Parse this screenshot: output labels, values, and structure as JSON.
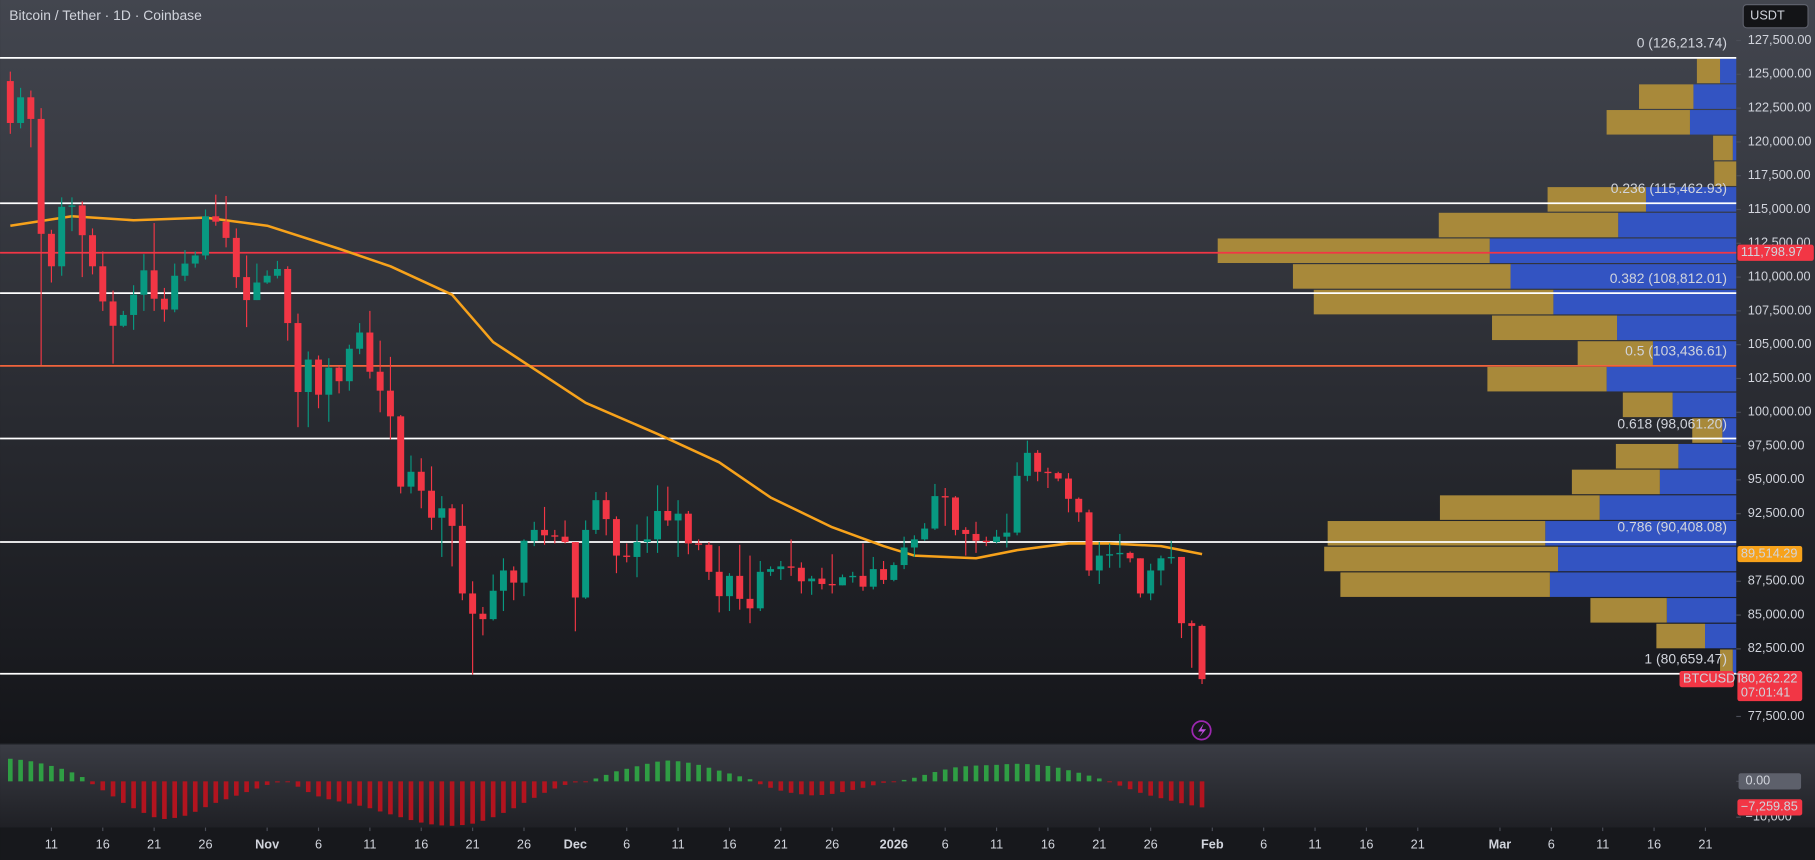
{
  "chart_data": {
    "type": "candlestick",
    "title": "Bitcoin / Tether · 1D · Coinbase",
    "currency": "USDT",
    "up_color": "#089981",
    "down_color": "#f23645",
    "x": [
      -4,
      -3,
      -2,
      -1,
      0,
      1,
      2,
      3,
      4,
      5,
      6,
      7,
      8,
      9,
      10,
      11,
      12,
      13,
      14,
      15,
      16,
      17,
      18,
      19,
      20,
      21,
      22,
      23,
      24,
      25,
      26,
      27,
      28,
      29,
      30,
      31,
      32,
      33,
      34,
      35,
      36,
      37,
      38,
      39,
      40,
      41,
      42,
      43,
      44,
      45,
      46,
      47,
      48,
      49,
      50,
      51,
      52,
      53,
      54,
      55,
      56,
      57,
      58,
      59,
      60,
      61,
      62,
      63,
      64,
      65,
      66,
      67,
      68,
      69,
      70,
      71,
      72,
      73,
      74,
      75,
      76,
      77,
      78,
      79,
      80,
      81,
      82,
      83,
      84,
      85,
      86,
      87,
      88,
      89,
      90,
      91,
      92,
      93,
      94,
      95,
      96,
      97,
      98,
      99,
      100,
      101,
      102,
      103,
      104,
      105,
      106,
      107,
      108,
      109,
      110,
      111,
      112
    ],
    "open": [
      124500,
      121400,
      123300,
      121700,
      113200,
      110800,
      115200,
      115300,
      113100,
      110800,
      108200,
      106400,
      107200,
      108700,
      110500,
      108400,
      107600,
      110100,
      111000,
      111600,
      114500,
      114100,
      112900,
      110000,
      108300,
      109600,
      110100,
      110600,
      106600,
      101500,
      103900,
      101300,
      103300,
      102300,
      104700,
      105900,
      103000,
      101600,
      99700,
      94500,
      95600,
      94200,
      92200,
      92900,
      91600,
      86600,
      85100,
      84700,
      86800,
      88300,
      87400,
      90500,
      91300,
      90900,
      90800,
      90400,
      86300,
      91300,
      93500,
      92100,
      89400,
      89300,
      90400,
      90600,
      92700,
      92000,
      92500,
      90300,
      90200,
      88200,
      86400,
      87900,
      86200,
      85500,
      88200,
      88400,
      88600,
      88500,
      87500,
      87700,
      87300,
      87200,
      87800,
      87900,
      87100,
      88400,
      87600,
      88700,
      90000,
      90600,
      91400,
      93800,
      93700,
      91300,
      91000,
      90500,
      90400,
      90800,
      91100,
      95300,
      97000,
      95600,
      95500,
      95100,
      93600,
      92600,
      88300,
      89400,
      89500,
      89600,
      89200,
      86600,
      88300,
      89200,
      89300,
      84400,
      84200
    ],
    "high": [
      125200,
      124000,
      123800,
      122500,
      113500,
      115900,
      115900,
      115600,
      113600,
      111900,
      109000,
      107500,
      109400,
      111700,
      114000,
      109200,
      111000,
      112000,
      111900,
      115000,
      116100,
      116000,
      113600,
      111600,
      111000,
      110500,
      111200,
      110800,
      107300,
      104500,
      104200,
      104000,
      103400,
      105000,
      106600,
      107500,
      105300,
      104100,
      99800,
      96800,
      96600,
      96000,
      93800,
      93200,
      93200,
      87500,
      85600,
      88000,
      89200,
      88600,
      90600,
      91900,
      93000,
      91300,
      92000,
      90400,
      92000,
      94100,
      94100,
      92300,
      90300,
      91700,
      92300,
      94600,
      94500,
      93500,
      92700,
      90600,
      90400,
      90100,
      88100,
      90200,
      89400,
      89000,
      88600,
      89000,
      90600,
      88900,
      87900,
      88500,
      89500,
      88000,
      88200,
      90300,
      89300,
      89000,
      88900,
      90800,
      90900,
      91800,
      94700,
      94400,
      93800,
      91500,
      91900,
      90800,
      91300,
      92500,
      96300,
      97900,
      97200,
      95900,
      95600,
      95500,
      93700,
      92800,
      90400,
      90300,
      91000,
      89700,
      89200,
      88800,
      89400,
      90500,
      89300,
      84600,
      84300
    ],
    "low": [
      120600,
      121000,
      119600,
      103500,
      109600,
      110100,
      113400,
      110000,
      110200,
      107500,
      103600,
      106300,
      106100,
      107500,
      107500,
      106700,
      107400,
      109700,
      110700,
      111300,
      113800,
      112200,
      109200,
      106300,
      108300,
      109500,
      109900,
      105300,
      98900,
      98900,
      100300,
      99300,
      101400,
      101600,
      104300,
      102500,
      100000,
      98000,
      94000,
      94000,
      92900,
      91300,
      89300,
      88600,
      86100,
      80600,
      83500,
      84600,
      85300,
      86100,
      86400,
      90100,
      90200,
      90300,
      90300,
      83800,
      86200,
      91000,
      90900,
      88100,
      88900,
      87800,
      89600,
      89600,
      91600,
      89300,
      89500,
      89800,
      87600,
      85200,
      85300,
      85400,
      84400,
      85300,
      87900,
      87600,
      87900,
      86600,
      86500,
      86900,
      86600,
      87200,
      87400,
      86800,
      86900,
      87300,
      87500,
      88400,
      89300,
      90500,
      91300,
      91600,
      90900,
      89400,
      89600,
      90100,
      90300,
      90000,
      90900,
      94900,
      94900,
      94400,
      94900,
      92600,
      91900,
      87900,
      87300,
      88500,
      88500,
      88900,
      86300,
      86100,
      87200,
      88800,
      83300,
      81100,
      79900
    ],
    "close": [
      121400,
      123300,
      121700,
      113200,
      110800,
      115200,
      115300,
      113100,
      110800,
      108200,
      106400,
      107200,
      108700,
      110500,
      108400,
      107600,
      110100,
      111000,
      111600,
      114500,
      114100,
      112900,
      110000,
      108300,
      109600,
      110100,
      110600,
      106600,
      101500,
      103900,
      101300,
      103300,
      102300,
      104700,
      105900,
      103000,
      101600,
      99700,
      94500,
      95600,
      94200,
      92200,
      92900,
      91600,
      86600,
      85100,
      84700,
      86800,
      88300,
      87400,
      90500,
      91300,
      90900,
      90800,
      90400,
      86300,
      91300,
      93500,
      92100,
      89400,
      89300,
      90400,
      90600,
      92700,
      92000,
      92500,
      90300,
      90200,
      88200,
      86400,
      87900,
      86200,
      85500,
      88200,
      88400,
      88600,
      88500,
      87500,
      87700,
      87300,
      87200,
      87800,
      87900,
      87100,
      88400,
      87600,
      88700,
      90000,
      90600,
      91400,
      93800,
      93700,
      91300,
      91000,
      90500,
      90400,
      90800,
      91100,
      95300,
      97000,
      95600,
      95500,
      95100,
      93600,
      92600,
      88300,
      89400,
      89500,
      89600,
      89200,
      86600,
      88300,
      89200,
      89300,
      84400,
      84200,
      80262.22
    ],
    "last_label": "80,262.22",
    "symbol": "BTCUSDT",
    "countdown": "07:01:41",
    "xlim": [
      -5,
      164
    ],
    "xticks": [
      {
        "value": 0,
        "label": "11"
      },
      {
        "value": 5,
        "label": "16"
      },
      {
        "value": 10,
        "label": "21"
      },
      {
        "value": 15,
        "label": "26"
      },
      {
        "value": 21,
        "label": "Nov"
      },
      {
        "value": 26,
        "label": "6"
      },
      {
        "value": 31,
        "label": "11"
      },
      {
        "value": 36,
        "label": "16"
      },
      {
        "value": 41,
        "label": "21"
      },
      {
        "value": 46,
        "label": "26"
      },
      {
        "value": 51,
        "label": "Dec"
      },
      {
        "value": 56,
        "label": "6"
      },
      {
        "value": 61,
        "label": "11"
      },
      {
        "value": 66,
        "label": "16"
      },
      {
        "value": 71,
        "label": "21"
      },
      {
        "value": 76,
        "label": "26"
      },
      {
        "value": 82,
        "label": "2026"
      },
      {
        "value": 87,
        "label": "6"
      },
      {
        "value": 92,
        "label": "11"
      },
      {
        "value": 97,
        "label": "16"
      },
      {
        "value": 102,
        "label": "21"
      },
      {
        "value": 107,
        "label": "26"
      },
      {
        "value": 113,
        "label": "Feb"
      },
      {
        "value": 118,
        "label": "6"
      },
      {
        "value": 123,
        "label": "11"
      },
      {
        "value": 128,
        "label": "16"
      },
      {
        "value": 133,
        "label": "21"
      },
      {
        "value": 141,
        "label": "Mar"
      },
      {
        "value": 146,
        "label": "6"
      },
      {
        "value": 151,
        "label": "11"
      },
      {
        "value": 156,
        "label": "16"
      },
      {
        "value": 161,
        "label": "21"
      }
    ],
    "ylim": [
      75445,
      130497
    ],
    "yticks": [
      {
        "value": 77500,
        "label": "77,500.00"
      },
      {
        "value": 82500,
        "label": "82,500.00"
      },
      {
        "value": 85000,
        "label": "85,000.00"
      },
      {
        "value": 87500,
        "label": "87,500.00"
      },
      {
        "value": 92500,
        "label": "92,500.00"
      },
      {
        "value": 95000,
        "label": "95,000.00"
      },
      {
        "value": 97500,
        "label": "97,500.00"
      },
      {
        "value": 100000,
        "label": "100,000.00"
      },
      {
        "value": 102500,
        "label": "102,500.00"
      },
      {
        "value": 105000,
        "label": "105,000.00"
      },
      {
        "value": 107500,
        "label": "107,500.00"
      },
      {
        "value": 110000,
        "label": "110,000.00"
      },
      {
        "value": 112500,
        "label": "112,500.00"
      },
      {
        "value": 115000,
        "label": "115,000.00"
      },
      {
        "value": 117500,
        "label": "117,500.00"
      },
      {
        "value": 120000,
        "label": "120,000.00"
      },
      {
        "value": 122500,
        "label": "122,500.00"
      },
      {
        "value": 125000,
        "label": "125,000.00"
      },
      {
        "value": 127500,
        "label": "127,500.00"
      }
    ],
    "moving_average": {
      "color": "#f7a21b",
      "x": [
        -4,
        2,
        8,
        15,
        21,
        28,
        33,
        39,
        43,
        49,
        52,
        59,
        65,
        70,
        76,
        81,
        84,
        90,
        94,
        99,
        103,
        108,
        112
      ],
      "values": [
        113800,
        114500,
        114200,
        114400,
        113800,
        112100,
        110800,
        108700,
        105200,
        102200,
        100700,
        98400,
        96300,
        93700,
        91500,
        90100,
        89400,
        89200,
        89800,
        90300,
        90300,
        90100,
        89514.29
      ],
      "last_label": "89,514.29"
    },
    "price_line": {
      "value": 111798.97,
      "label": "111,798.97",
      "color": "#f23645"
    },
    "levels": [
      {
        "value": 126213.74,
        "label": "0 (126,213.74)",
        "color": "#ffffff",
        "label_color": "#ffffff"
      },
      {
        "value": 115462.93,
        "label": "0.236 (115,462.93)",
        "color": "#ffffff",
        "label_color": "#e6e6e6"
      },
      {
        "value": 108812.01,
        "label": "0.382 (108,812.01)",
        "color": "#ffffff",
        "label_color": "#8fa8f0"
      },
      {
        "value": 103436.61,
        "label": "0.5 (103,436.61)",
        "color": "#f0643c",
        "label_color": "#c98a4a"
      },
      {
        "value": 98061.2,
        "label": "0.618 (98,061.20)",
        "color": "#ffffff",
        "label_color": "#ffffff"
      },
      {
        "value": 90408.08,
        "label": "0.786 (90,408.08)",
        "color": "#ffffff",
        "label_color": "#b9c3dd"
      },
      {
        "value": 80659.47,
        "label": "1 (80,659.47)",
        "color": "#ffffff",
        "label_color": "#ffffff"
      }
    ],
    "volume_profile": {
      "up_color": "#3354c2",
      "down_color": "#a8893a",
      "xlim": [
        0,
        450
      ],
      "bins": [
        80600,
        82500,
        84400,
        86300,
        88200,
        90100,
        92000,
        93900,
        95800,
        97700,
        99600,
        101500,
        103400,
        105300,
        107200,
        109100,
        111000,
        112900,
        114800,
        116700,
        118600,
        120500,
        122400,
        124300,
        126200
      ],
      "up": [
        3,
        27,
        60,
        161,
        154,
        165,
        118,
        66,
        50,
        12,
        55,
        112,
        72,
        103,
        158,
        195,
        213,
        102,
        78,
        0,
        3,
        40,
        37,
        14
      ],
      "down": [
        11,
        42,
        66,
        181,
        202,
        188,
        138,
        76,
        54,
        26,
        43,
        103,
        65,
        108,
        207,
        188,
        235,
        155,
        85,
        19,
        17,
        72,
        47,
        20
      ]
    },
    "oscillator": {
      "up_color": "#2f9e44",
      "down_color": "#b3141f",
      "ylim": [
        -12900,
        9700
      ],
      "yticks": [
        {
          "value": 0,
          "label": "0.00"
        },
        {
          "value": -10000,
          "label": "−10,000"
        }
      ],
      "last_label": "−7,259.85",
      "values": [
        6300,
        6000,
        5600,
        5000,
        4300,
        3500,
        2500,
        1200,
        -800,
        -2500,
        -4200,
        -6000,
        -7500,
        -8800,
        -10000,
        -10500,
        -10200,
        -9600,
        -8500,
        -7200,
        -6000,
        -5000,
        -4000,
        -3000,
        -2000,
        -1000,
        -300,
        -200,
        -1500,
        -3000,
        -4200,
        -5000,
        -5600,
        -6200,
        -6800,
        -7500,
        -8400,
        -9200,
        -10000,
        -10800,
        -11500,
        -12000,
        -12300,
        -12400,
        -12200,
        -11800,
        -11000,
        -10000,
        -8800,
        -7500,
        -6000,
        -4600,
        -3200,
        -2000,
        -1000,
        -300,
        -100,
        800,
        1800,
        2800,
        3500,
        4200,
        4900,
        5500,
        5800,
        5600,
        5200,
        4600,
        3800,
        3000,
        2200,
        1400,
        600,
        -800,
        -1800,
        -2600,
        -3200,
        -3600,
        -3900,
        -3800,
        -3500,
        -3000,
        -2400,
        -1800,
        -1100,
        -400,
        -100,
        400,
        1000,
        1800,
        2600,
        3300,
        3900,
        4200,
        4400,
        4500,
        4600,
        4800,
        4900,
        4800,
        4600,
        4300,
        3800,
        3100,
        2400,
        1600,
        800,
        -200,
        -1200,
        -2200,
        -3200,
        -4000,
        -4700,
        -5400,
        -6100,
        -6700,
        -7259.85
      ]
    }
  }
}
